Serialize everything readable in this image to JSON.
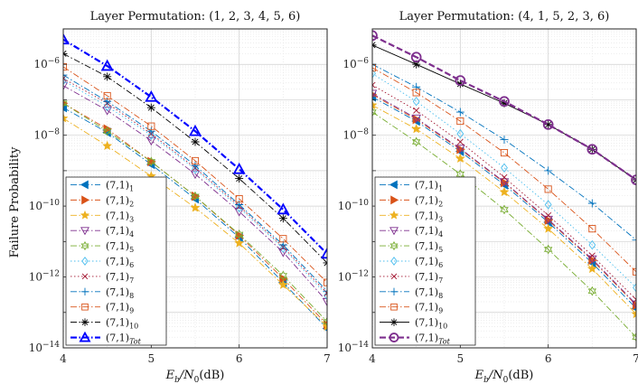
{
  "figure": {
    "ylabel": "Failure Probability",
    "xlabel_parts": [
      "E",
      "b",
      "/N",
      "0",
      "(dB)"
    ]
  },
  "chart_data": [
    {
      "type": "line",
      "title": "Layer Permutation: (1, 2, 3, 4, 5, 6)",
      "xlim": [
        4,
        7
      ],
      "ylim_exponents": [
        -14,
        -5
      ],
      "y_scale": "log",
      "grid": true,
      "legend_position": "bottom-left",
      "x_ticks": [
        "4",
        "5",
        "6",
        "7"
      ],
      "x": [
        4,
        4.5,
        5,
        5.5,
        6,
        6.5,
        7
      ],
      "series": [
        {
          "name": "(7,1)1",
          "base": "(7,1)",
          "sub": "1",
          "color": "#0072BD",
          "marker": "triangle-left",
          "dash": "dashdot",
          "values": [
            6e-08,
            1.2e-08,
            1.5e-09,
            1.6e-10,
            1.3e-11,
            7e-13,
            3.5e-14
          ]
        },
        {
          "name": "(7,1)2",
          "base": "(7,1)",
          "sub": "2",
          "color": "#D95319",
          "marker": "triangle-right",
          "dash": "dashdot",
          "values": [
            8e-08,
            1.5e-08,
            1.8e-09,
            1.9e-10,
            1.5e-11,
            9e-13,
            4.5e-14
          ]
        },
        {
          "name": "(7,1)3",
          "base": "(7,1)",
          "sub": "3",
          "color": "#EDB120",
          "marker": "star",
          "dash": "dashdot",
          "values": [
            3e-08,
            5e-09,
            7e-10,
            9e-11,
            9e-12,
            6e-13,
            4e-14
          ]
        },
        {
          "name": "(7,1)4",
          "base": "(7,1)",
          "sub": "4",
          "color": "#7E2F8E",
          "marker": "triangle-down",
          "dash": "dashdot",
          "values": [
            2.5e-07,
            5e-08,
            7e-09,
            8e-10,
            7e-11,
            5e-12,
            2e-13
          ]
        },
        {
          "name": "(7,1)5",
          "base": "(7,1)",
          "sub": "5",
          "color": "#77AC30",
          "marker": "hexagram",
          "dash": "dashdot",
          "values": [
            8e-08,
            1.3e-08,
            1.8e-09,
            1.9e-10,
            1.6e-11,
            1.1e-12,
            5.5e-14
          ]
        },
        {
          "name": "(7,1)6",
          "base": "(7,1)",
          "sub": "6",
          "color": "#4DBEEE",
          "marker": "diamond",
          "dash": "dotted",
          "values": [
            3.5e-07,
            6.5e-08,
            1e-08,
            1.1e-09,
            9e-11,
            6.5e-12,
            3e-13
          ]
        },
        {
          "name": "(7,1)7",
          "base": "(7,1)",
          "sub": "7",
          "color": "#A2142F",
          "marker": "x",
          "dash": "dotted",
          "values": [
            4e-07,
            8e-08,
            1.1e-08,
            1.2e-09,
            1e-10,
            7e-12,
            3.5e-13
          ]
        },
        {
          "name": "(7,1)8",
          "base": "(7,1)",
          "sub": "8",
          "color": "#0072BD",
          "marker": "plus",
          "dash": "dashdot",
          "values": [
            5e-07,
            9e-08,
            1.3e-08,
            1.4e-09,
            1.1e-10,
            8e-12,
            4e-13
          ]
        },
        {
          "name": "(7,1)9",
          "base": "(7,1)",
          "sub": "9",
          "color": "#D95319",
          "marker": "square",
          "dash": "dashdot",
          "values": [
            8.5e-07,
            1.3e-07,
            1.8e-08,
            1.9e-09,
            1.6e-10,
            1.2e-11,
            7e-13
          ]
        },
        {
          "name": "(7,1)10",
          "base": "(7,1)",
          "sub": "10",
          "color": "#000000",
          "marker": "asterisk",
          "dash": "dashdot",
          "values": [
            2e-06,
            4.5e-07,
            6e-08,
            6.5e-09,
            6e-10,
            4.5e-11,
            2.5e-12
          ]
        },
        {
          "name": "(7,1)Tot",
          "base": "(7,1)",
          "sub": "Tot",
          "color": "#0000FF",
          "marker": "triangle-up",
          "dash": "dashdot",
          "bold": true,
          "values": [
            5e-06,
            9e-07,
            1.2e-07,
            1.3e-08,
            1.1e-09,
            8e-11,
            4.5e-12
          ]
        }
      ]
    },
    {
      "type": "line",
      "title": "Layer Permutation: (4, 1, 5, 2, 3, 6)",
      "xlim": [
        4,
        7
      ],
      "ylim_exponents": [
        -14,
        -5
      ],
      "y_scale": "log",
      "grid": true,
      "legend_position": "bottom-left",
      "x_ticks": [
        "4",
        "5",
        "6",
        "7"
      ],
      "x": [
        4,
        4.5,
        5,
        5.5,
        6,
        6.5,
        7
      ],
      "series": [
        {
          "name": "(7,1)1",
          "base": "(7,1)",
          "sub": "1",
          "color": "#0072BD",
          "marker": "triangle-left",
          "dash": "dashdot",
          "values": [
            1.2e-07,
            2.5e-08,
            3.5e-09,
            4e-10,
            3.5e-11,
            2.5e-12,
            1.3e-13
          ]
        },
        {
          "name": "(7,1)2",
          "base": "(7,1)",
          "sub": "2",
          "color": "#D95319",
          "marker": "triangle-right",
          "dash": "dashdot",
          "values": [
            1.4e-07,
            2.8e-08,
            4e-09,
            4.6e-10,
            4e-11,
            3e-12,
            1.6e-13
          ]
        },
        {
          "name": "(7,1)3",
          "base": "(7,1)",
          "sub": "3",
          "color": "#EDB120",
          "marker": "star",
          "dash": "dashdot",
          "values": [
            7e-08,
            1.5e-08,
            2.2e-09,
            2.5e-10,
            2.3e-11,
            1.7e-12,
            9e-14
          ]
        },
        {
          "name": "(7,1)4",
          "base": "(7,1)",
          "sub": "4",
          "color": "#7E2F8E",
          "marker": "triangle-down",
          "dash": "dashdot",
          "values": [
            1.5e-07,
            3e-08,
            4.2e-09,
            4.8e-10,
            4.2e-11,
            3.2e-12,
            1.7e-13
          ]
        },
        {
          "name": "(7,1)5",
          "base": "(7,1)",
          "sub": "5",
          "color": "#77AC30",
          "marker": "hexagram",
          "dash": "dashdot",
          "values": [
            4.5e-08,
            6.5e-09,
            8e-10,
            8e-11,
            6e-12,
            4e-13,
            2e-14
          ]
        },
        {
          "name": "(7,1)6",
          "base": "(7,1)",
          "sub": "6",
          "color": "#4DBEEE",
          "marker": "diamond",
          "dash": "dotted",
          "values": [
            5.5e-07,
            9e-08,
            1.1e-08,
            1.2e-09,
            1.1e-10,
            8e-12,
            5e-13
          ]
        },
        {
          "name": "(7,1)7",
          "base": "(7,1)",
          "sub": "7",
          "color": "#A2142F",
          "marker": "x",
          "dash": "dotted",
          "values": [
            2.6e-07,
            5e-08,
            6.5e-09,
            6.5e-10,
            5.5e-11,
            4e-12,
            2.3e-13
          ]
        },
        {
          "name": "(7,1)8",
          "base": "(7,1)",
          "sub": "8",
          "color": "#0072BD",
          "marker": "plus",
          "dash": "dashdot",
          "values": [
            1e-06,
            2.3e-07,
            4.5e-08,
            7.5e-09,
            1e-09,
            1.2e-10,
            1.1e-11
          ]
        },
        {
          "name": "(7,1)9",
          "base": "(7,1)",
          "sub": "9",
          "color": "#D95319",
          "marker": "square",
          "dash": "dashdot",
          "values": [
            8e-07,
            1.6e-07,
            2.5e-08,
            3.2e-09,
            3e-10,
            2.3e-11,
            1.4e-12
          ]
        },
        {
          "name": "(7,1)10",
          "base": "(7,1)",
          "sub": "10",
          "color": "#000000",
          "marker": "asterisk",
          "dash": "solid",
          "values": [
            3.5e-06,
            1e-06,
            2.8e-07,
            8e-08,
            2e-08,
            4e-09,
            5.5e-10
          ]
        },
        {
          "name": "(7,1)Tot",
          "base": "(7,1)",
          "sub": "Tot",
          "color": "#7E2F8E",
          "marker": "circle",
          "dash": "dashed",
          "bold": true,
          "values": [
            6.5e-06,
            1.6e-06,
            3.5e-07,
            9e-08,
            2e-08,
            4e-09,
            5.5e-10
          ]
        }
      ]
    }
  ]
}
